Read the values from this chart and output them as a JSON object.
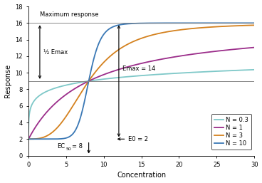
{
  "E0": 2,
  "Emax": 14,
  "EC50": 8,
  "N_values": [
    0.3,
    1,
    3,
    10
  ],
  "colors": [
    "#7ec8c8",
    "#9b2d8a",
    "#d4811e",
    "#3a78b5"
  ],
  "labels": [
    "N = 0.3",
    "N = 1",
    "N = 3",
    "N = 10"
  ],
  "xlim": [
    0,
    30
  ],
  "ylim": [
    0,
    18
  ],
  "xticks": [
    0,
    5,
    10,
    15,
    20,
    25,
    30
  ],
  "yticks": [
    0,
    2,
    4,
    6,
    8,
    10,
    12,
    14,
    16,
    18
  ],
  "xlabel": "Concentration",
  "ylabel": "Response",
  "max_response_y": 16,
  "half_emax_y": 9,
  "annotation_label_emax": "Emax = 14",
  "annotation_label_e0": "E0 = 2",
  "annotation_label_ec50": "EC",
  "annotation_label_half_emax": "½ Emax",
  "annotation_label_max": "Maximum response",
  "background_color": "#ffffff",
  "line_width": 1.3
}
